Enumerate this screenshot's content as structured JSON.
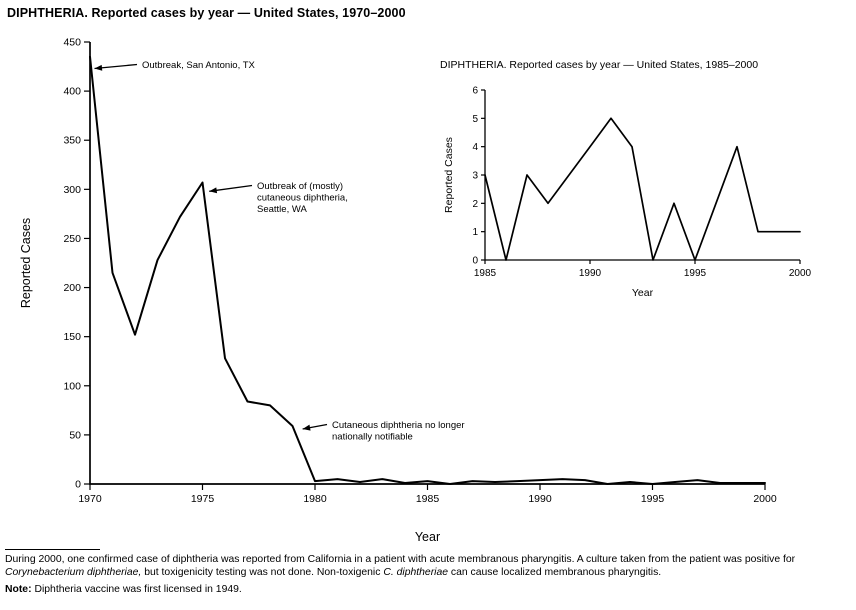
{
  "chart_data": [
    {
      "id": "main",
      "type": "line",
      "title": "DIPHTHERIA. Reported cases by year — United States, 1970–2000",
      "xlabel": "Year",
      "ylabel": "Reported Cases",
      "xlim": [
        1970,
        2000
      ],
      "ylim": [
        0,
        450
      ],
      "xticks": [
        1970,
        1975,
        1980,
        1985,
        1990,
        1995,
        2000
      ],
      "yticks": [
        0,
        50,
        100,
        150,
        200,
        250,
        300,
        350,
        400,
        450
      ],
      "grid": false,
      "x": [
        1970,
        1971,
        1972,
        1973,
        1974,
        1975,
        1976,
        1977,
        1978,
        1979,
        1980,
        1981,
        1982,
        1983,
        1984,
        1985,
        1986,
        1987,
        1988,
        1989,
        1990,
        1991,
        1992,
        1993,
        1994,
        1995,
        1996,
        1997,
        1998,
        1999,
        2000
      ],
      "values": [
        435,
        215,
        152,
        228,
        272,
        307,
        128,
        84,
        80,
        59,
        3,
        5,
        2,
        5,
        1,
        3,
        0,
        3,
        2,
        3,
        4,
        5,
        4,
        0,
        2,
        0,
        2,
        4,
        1,
        1,
        1
      ],
      "annotations": [
        {
          "lines": [
            "Outbreak, San Antonio, TX"
          ],
          "target": {
            "x": 1970.2,
            "y": 423
          },
          "text_at": [
            142,
            68
          ]
        },
        {
          "lines": [
            "Outbreak of (mostly)",
            "cutaneous diphtheria,",
            "Seattle, WA"
          ],
          "target": {
            "x": 1975.3,
            "y": 298
          },
          "text_at": [
            257,
            189
          ]
        },
        {
          "lines": [
            "Cutaneous diphtheria no longer",
            "nationally notifiable"
          ],
          "target": {
            "x": 1979.45,
            "y": 56
          },
          "text_at": [
            332,
            428
          ]
        }
      ]
    },
    {
      "id": "inset",
      "type": "line",
      "title": "DIPHTHERIA. Reported cases by year — United States, 1985–2000",
      "xlabel": "Year",
      "ylabel": "Reported Cases",
      "xlim": [
        1985,
        2000
      ],
      "ylim": [
        0,
        6
      ],
      "xticks": [
        1985,
        1990,
        1995,
        2000
      ],
      "yticks": [
        0,
        1,
        2,
        3,
        4,
        5,
        6
      ],
      "grid": false,
      "x": [
        1985,
        1986,
        1987,
        1988,
        1989,
        1990,
        1991,
        1992,
        1993,
        1994,
        1995,
        1996,
        1997,
        1998,
        1999,
        2000
      ],
      "values": [
        3,
        0,
        3,
        2,
        3,
        4,
        5,
        4,
        0,
        2,
        0,
        2,
        4,
        1,
        1,
        1
      ],
      "annotations": []
    }
  ],
  "footer": {
    "paragraph_segments": [
      {
        "text": "During 2000, one confirmed case of diphtheria was reported from California in a patient with acute membranous pharyngitis. A culture taken from the patient was positive for ",
        "italic": false
      },
      {
        "text": "Corynebacterium diphtheriae,",
        "italic": true
      },
      {
        "text": " but toxigenicity testing was not done. Non-toxigenic ",
        "italic": false
      },
      {
        "text": "C. diphtheriae",
        "italic": true
      },
      {
        "text": " can cause localized membranous pharyngitis.",
        "italic": false
      }
    ],
    "note_label": "Note:",
    "note_text": " Diphtheria vaccine was first licensed in 1949."
  }
}
